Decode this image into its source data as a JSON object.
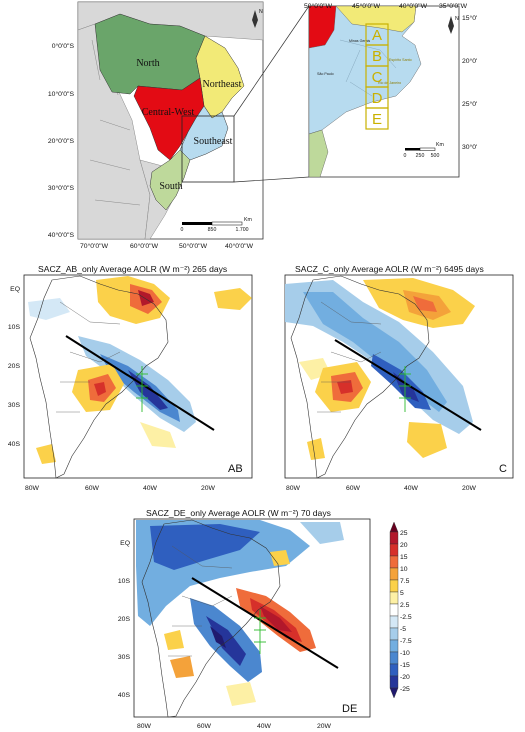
{
  "colors": {
    "north": "#6aa56a",
    "northeast": "#f2ea77",
    "central_west": "#e30b14",
    "southeast": "#b7dbef",
    "south": "#bed99b",
    "neighbors": "#d8d8d8",
    "zone_box": "#c9b100",
    "sacz_line": "#000000",
    "green_marker": "#2dbb2d"
  },
  "regional_map": {
    "lat_labels": [
      "0°0'0\"S",
      "10°0'0\"S",
      "20°0'0\"S",
      "30°0'0\"S",
      "40°0'0\"S"
    ],
    "lon_labels": [
      "70°0'0\"W",
      "60°0'0\"W",
      "50°0'0\"W",
      "40°0'0\"W"
    ],
    "regions": {
      "north": "North",
      "northeast": "Northeast",
      "central_west": "Central-West",
      "southeast": "Southeast",
      "south": "South"
    },
    "north_arrow": "N",
    "scale_ticks": [
      "0",
      "850",
      "1.700"
    ],
    "scale_unit": "Km"
  },
  "zoom_map": {
    "lon_labels": [
      "50°0'0\"W",
      "45°0'0\"W",
      "40°0'0\"W",
      "35°0'0\"W"
    ],
    "lat_labels": [
      "15°0'",
      "20°0'",
      "25°0'",
      "30°0'"
    ],
    "zones": [
      "A",
      "B",
      "C",
      "D",
      "E"
    ],
    "places": [
      "Minas Gerais",
      "São Paulo",
      "Espírito Santo",
      "Rio de Janeiro"
    ],
    "north_arrow": "N",
    "scale_ticks": [
      "0",
      "250",
      "500"
    ],
    "scale_unit": "Km"
  },
  "panels": [
    {
      "title": "SACZ_AB_only Average AOLR (W m⁻²) 265 days",
      "label": "AB"
    },
    {
      "title": "SACZ_C_only Average AOLR (W m⁻²) 6495 days",
      "label": "C"
    },
    {
      "title": "SACZ_DE_only Average AOLR (W m⁻²) 70 days",
      "label": "DE"
    }
  ],
  "panel_lat_labels": [
    "EQ",
    "10S",
    "20S",
    "30S",
    "40S"
  ],
  "panel_lon_labels": [
    "80W",
    "60W",
    "40W",
    "20W"
  ],
  "colorbar": {
    "levels": [
      "25",
      "20",
      "15",
      "10",
      "7.5",
      "5",
      "2.5",
      "-2.5",
      "-5",
      "-7.5",
      "-10",
      "-15",
      "-20",
      "-25"
    ],
    "colors": [
      "#67001f",
      "#b2182b",
      "#d6302a",
      "#ef6c3b",
      "#f4a23a",
      "#fbd14a",
      "#fdf0a5",
      "#ffffff",
      "#d4e8f6",
      "#a6cdea",
      "#72aee0",
      "#4b87cf",
      "#2f5fbf",
      "#25359a",
      "#201a6e"
    ]
  }
}
